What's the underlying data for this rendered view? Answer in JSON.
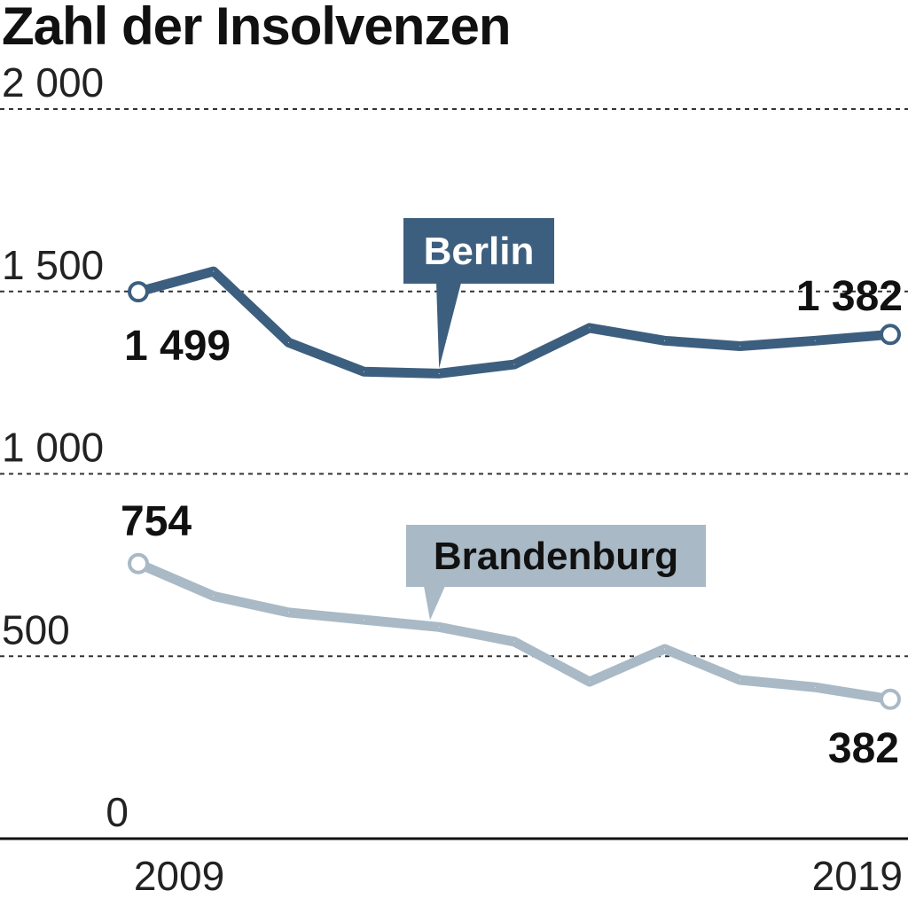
{
  "chart_data": {
    "type": "line",
    "title": "Zahl der Insolvenzen",
    "xlabel": "",
    "ylabel": "",
    "x": [
      2009,
      2010,
      2011,
      2012,
      2013,
      2014,
      2015,
      2016,
      2017,
      2018,
      2019
    ],
    "x_tick_labels": [
      "2009",
      "2019"
    ],
    "ylim": [
      0,
      2000
    ],
    "y_ticks": [
      0,
      500,
      1000,
      1500,
      2000
    ],
    "y_tick_labels": [
      "0",
      "500",
      "1 000",
      "1 500",
      "2 000"
    ],
    "grid": "horizontal dashed",
    "series": [
      {
        "name": "Berlin",
        "color": "#3d5f7f",
        "values": [
          1499,
          1555,
          1360,
          1280,
          1275,
          1300,
          1400,
          1365,
          1350,
          1365,
          1382
        ],
        "start_label": "1 499",
        "end_label": "1 382"
      },
      {
        "name": "Brandenburg",
        "color": "#a9b9c5",
        "values": [
          754,
          665,
          620,
          600,
          580,
          540,
          430,
          520,
          435,
          415,
          382
        ],
        "start_label": "754",
        "end_label": "382"
      }
    ]
  }
}
